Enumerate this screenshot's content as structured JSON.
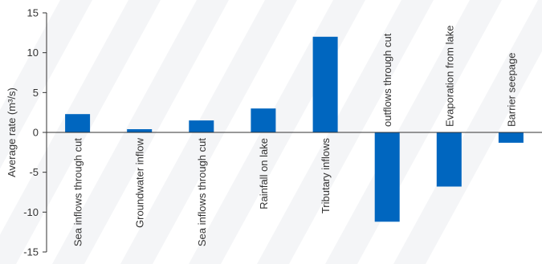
{
  "chart_data": {
    "type": "bar",
    "title": "",
    "xlabel": "",
    "ylabel": "Average rate (m³/s)",
    "ylim": [
      -15,
      15
    ],
    "yticks": [
      15,
      10,
      5,
      0,
      -5,
      -10,
      -15
    ],
    "ytick_labels": [
      "15",
      "10",
      "5",
      "0",
      "-5",
      "-10",
      "-15"
    ],
    "grid": false,
    "legend": "none",
    "bar_color": "#0066bf",
    "categories": [
      "Sea inflows through cut",
      "Groundwater inflow",
      "Sea inflows through cut",
      "Rainfall on lake",
      "Tributary inflows",
      "outflows through cut",
      "Evaporation from lake",
      "Barrier seepage"
    ],
    "values": [
      2.3,
      0.4,
      1.5,
      3.0,
      12.0,
      -11.2,
      -6.8,
      -1.3
    ]
  }
}
